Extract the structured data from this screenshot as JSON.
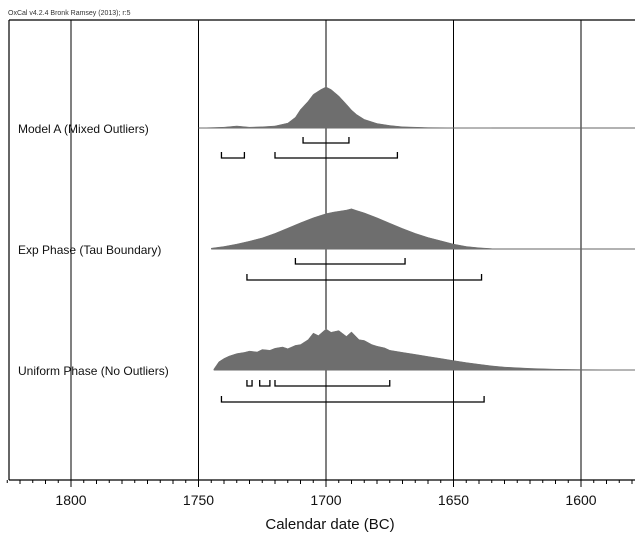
{
  "header": {
    "text": "OxCal v4.2.4 Bronk Ramsey (2013); r:5"
  },
  "chart_data": {
    "type": "area",
    "title": "",
    "xlabel": "Calendar date (BC)",
    "ylabel": "",
    "x_reversed": true,
    "xlim": [
      1825,
      1578
    ],
    "xticks": [
      1800,
      1750,
      1700,
      1650,
      1600
    ],
    "x_minor_step": 5,
    "grid": true,
    "colors": {
      "fill": "#6e6e6e",
      "line": "#666666",
      "bracket": "#000000",
      "grid": "#000000"
    },
    "series": [
      {
        "name": "Model A (Mixed Outliers)",
        "x": [
          1750,
          1740,
          1735,
          1730,
          1725,
          1720,
          1715,
          1712,
          1710,
          1707,
          1705,
          1702,
          1700,
          1698,
          1695,
          1692,
          1690,
          1688,
          1685,
          1680,
          1675,
          1670,
          1660,
          1650,
          1635
        ],
        "y": [
          0,
          0.02,
          0.05,
          0.02,
          0.03,
          0.05,
          0.12,
          0.26,
          0.45,
          0.65,
          0.82,
          0.94,
          1.0,
          0.94,
          0.78,
          0.58,
          0.44,
          0.33,
          0.21,
          0.11,
          0.06,
          0.03,
          0.01,
          0.005,
          0
        ],
        "ranges_68": [
          [
            1709,
            1691
          ]
        ],
        "ranges_95": [
          [
            1741,
            1732
          ],
          [
            1720,
            1672
          ]
        ]
      },
      {
        "name": "Exp Phase (Tau Boundary)",
        "x": [
          1745,
          1740,
          1735,
          1730,
          1725,
          1720,
          1715,
          1710,
          1705,
          1700,
          1697,
          1695,
          1692,
          1690,
          1688,
          1685,
          1680,
          1675,
          1670,
          1665,
          1660,
          1655,
          1650,
          1645,
          1640,
          1635
        ],
        "y": [
          0.02,
          0.06,
          0.12,
          0.19,
          0.27,
          0.38,
          0.51,
          0.64,
          0.76,
          0.86,
          0.9,
          0.92,
          0.95,
          0.98,
          0.94,
          0.88,
          0.76,
          0.63,
          0.5,
          0.38,
          0.28,
          0.2,
          0.12,
          0.06,
          0.03,
          0.01
        ],
        "ranges_68": [
          [
            1712,
            1669
          ]
        ],
        "ranges_95": [
          [
            1731,
            1639
          ]
        ]
      },
      {
        "name": "Uniform Phase (No Outliers)",
        "x": [
          1744,
          1742,
          1740,
          1738,
          1735,
          1732,
          1730,
          1727,
          1725,
          1722,
          1720,
          1717,
          1715,
          1712,
          1710,
          1707,
          1705,
          1703,
          1700,
          1698,
          1695,
          1692,
          1690,
          1687,
          1685,
          1682,
          1680,
          1677,
          1675,
          1670,
          1665,
          1660,
          1655,
          1650,
          1645,
          1640,
          1635,
          1630,
          1620,
          1610,
          1600,
          1578
        ],
        "y": [
          0.02,
          0.2,
          0.28,
          0.34,
          0.4,
          0.43,
          0.46,
          0.44,
          0.5,
          0.48,
          0.53,
          0.56,
          0.52,
          0.6,
          0.62,
          0.74,
          0.9,
          0.84,
          1.0,
          0.92,
          0.96,
          0.82,
          0.93,
          0.74,
          0.72,
          0.62,
          0.58,
          0.54,
          0.48,
          0.43,
          0.38,
          0.33,
          0.28,
          0.23,
          0.18,
          0.14,
          0.1,
          0.07,
          0.04,
          0.02,
          0.01,
          0.0
        ],
        "ranges_68": [
          [
            1731,
            1729
          ],
          [
            1726,
            1722
          ],
          [
            1720,
            1675
          ]
        ],
        "ranges_95": [
          [
            1741,
            1638
          ]
        ]
      }
    ]
  }
}
